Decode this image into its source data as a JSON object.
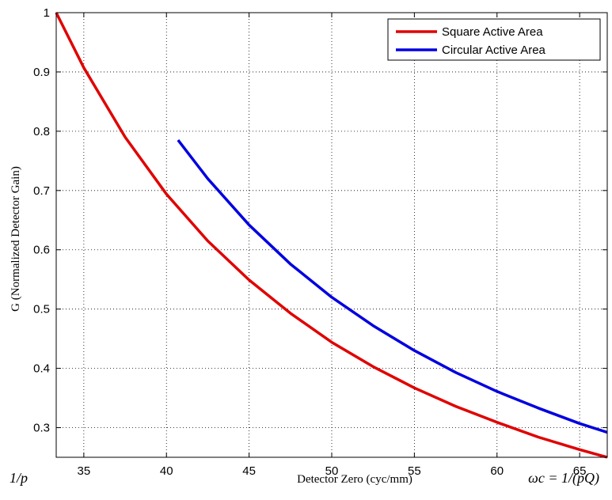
{
  "chart_data": {
    "type": "line",
    "xlabel": "Detector Zero (cyc/mm)",
    "ylabel": "G (Normalized Detector Gain)",
    "xlim": [
      33.33,
      66.67
    ],
    "ylim": [
      0.25,
      1.0
    ],
    "x_ticks": [
      "35",
      "40",
      "45",
      "50",
      "55",
      "60",
      "65"
    ],
    "x_tick_values": [
      35,
      40,
      45,
      50,
      55,
      60,
      65
    ],
    "y_ticks": [
      "0.3",
      "0.4",
      "0.5",
      "0.6",
      "0.7",
      "0.8",
      "0.9",
      "1"
    ],
    "y_tick_values": [
      0.3,
      0.4,
      0.5,
      0.6,
      0.7,
      0.8,
      0.9,
      1.0
    ],
    "x_min_label": "1/p",
    "x_max_label": "ωc = 1/(pQ)",
    "grid": true,
    "legend_position": "top-right",
    "series": [
      {
        "name": "Square Active Area",
        "color": "#e00000",
        "x": [
          33.33,
          35,
          37.5,
          40,
          42.5,
          45,
          47.5,
          50,
          52.5,
          55,
          57.5,
          60,
          62.5,
          65,
          66.67
        ],
        "y": [
          1.0,
          0.907,
          0.79,
          0.694,
          0.615,
          0.549,
          0.493,
          0.444,
          0.403,
          0.367,
          0.336,
          0.309,
          0.284,
          0.263,
          0.25
        ]
      },
      {
        "name": "Circular Active Area",
        "color": "#0000e0",
        "x": [
          40.7,
          42.5,
          45,
          47.5,
          50,
          52.5,
          55,
          57.5,
          60,
          62.5,
          65,
          66.67
        ],
        "y": [
          0.785,
          0.72,
          0.642,
          0.576,
          0.52,
          0.472,
          0.43,
          0.393,
          0.361,
          0.333,
          0.307,
          0.292
        ]
      }
    ]
  }
}
